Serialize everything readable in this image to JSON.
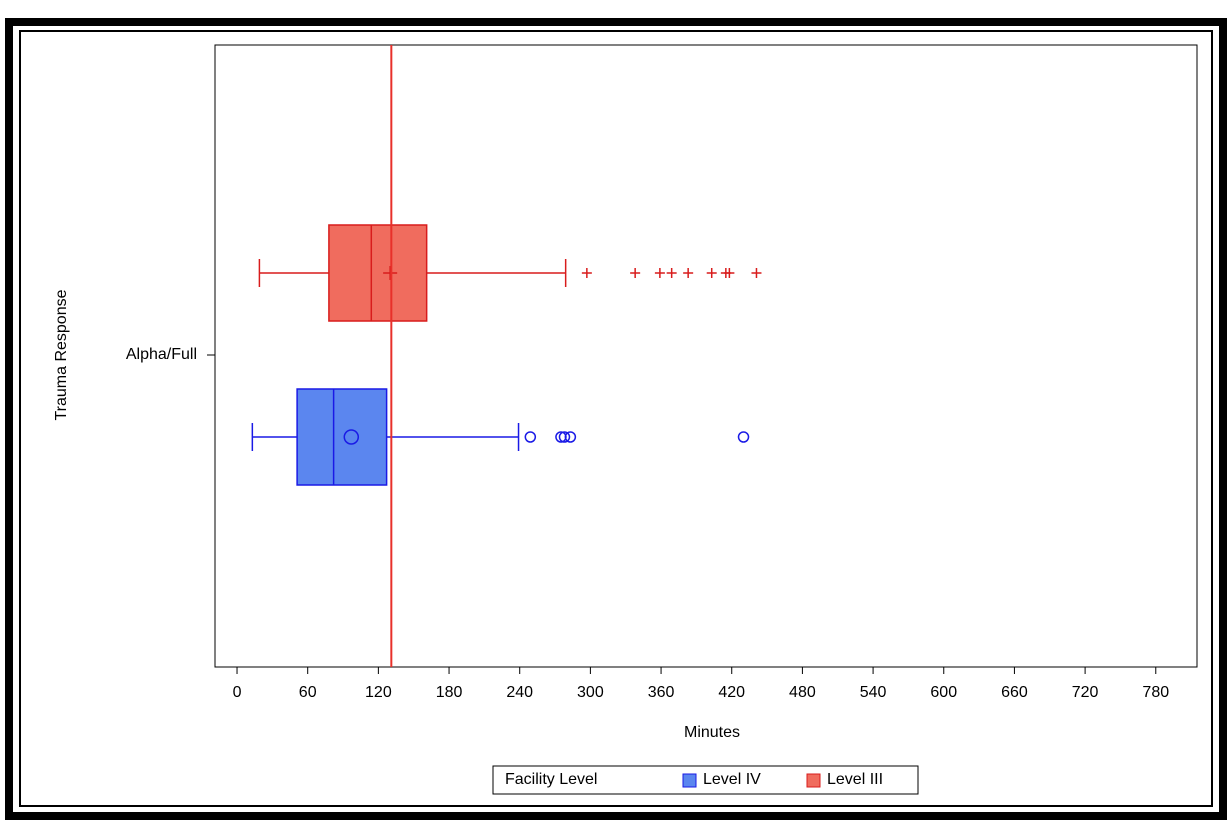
{
  "chart_data": {
    "type": "boxplot",
    "orientation": "horizontal",
    "x_label": "Minutes",
    "y_label": "Trauma Response",
    "categories": [
      "Alpha/Full"
    ],
    "xlim": [
      -18.7,
      815
    ],
    "xticks": [
      0,
      60,
      120,
      180,
      240,
      300,
      360,
      420,
      480,
      540,
      600,
      660,
      720,
      780
    ],
    "refline": 131,
    "refline_color": "#e8302a",
    "legend_title": "Facility Level",
    "series": [
      {
        "name": "Level IV",
        "color": "#5b86ef",
        "line_color": "#1a1ae6",
        "marker": "circle",
        "whisker_low": 13,
        "q1": 51,
        "median": 82,
        "mean": 97,
        "q3": 127,
        "whisker_high": 239,
        "outliers": [
          249,
          275,
          278,
          283,
          430
        ]
      },
      {
        "name": "Level III",
        "color": "#f06c5e",
        "line_color": "#d81c1c",
        "marker": "plus",
        "whisker_low": 19,
        "q1": 78,
        "median": 114,
        "mean": 130,
        "q3": 161,
        "whisker_high": 279,
        "outliers": [
          297,
          338,
          359,
          369,
          383,
          403,
          415,
          418,
          441
        ]
      }
    ]
  }
}
